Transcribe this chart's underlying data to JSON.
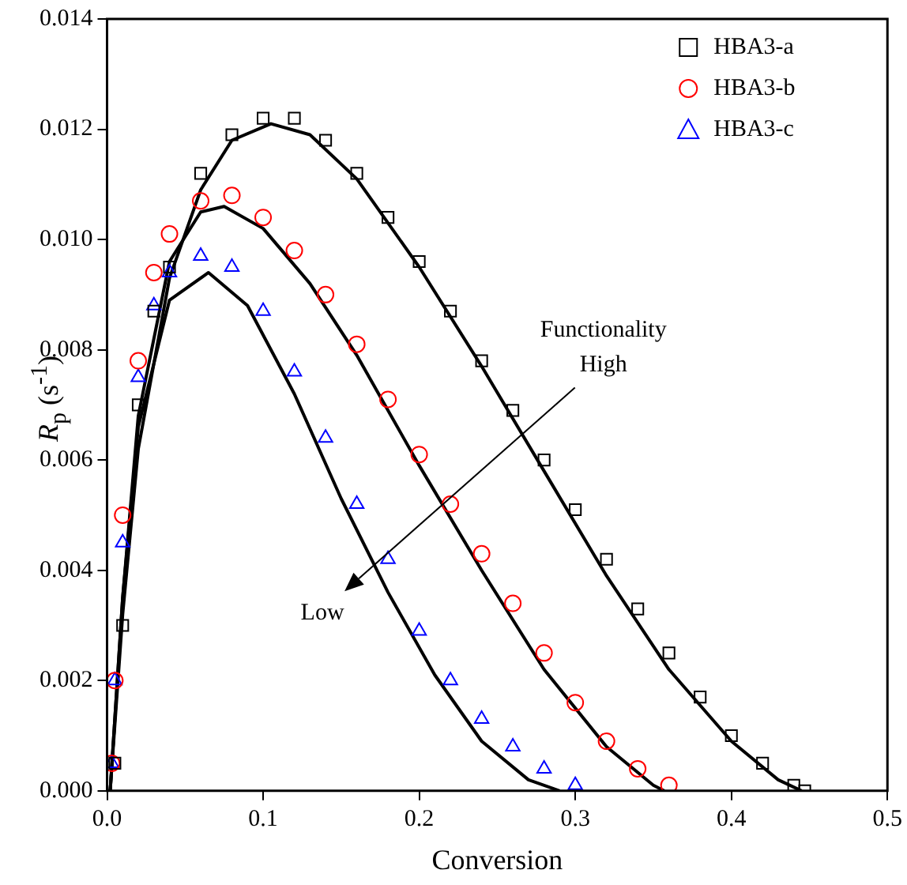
{
  "chart_data": {
    "type": "scatter",
    "xlabel": "Conversion",
    "ylabel": "R$_{p}$ (s$^{-1}$)",
    "xlim": [
      0,
      0.5
    ],
    "xticks": [
      {
        "value": 0,
        "label": "0.0"
      },
      0.1,
      0.2,
      0.3,
      0.4,
      0.5
    ],
    "ylim": [
      0,
      0.014
    ],
    "yticks": [
      {
        "value": 0,
        "label": "0.000"
      },
      {
        "value": 0.002,
        "label": "0.002"
      },
      {
        "value": 0.004,
        "label": "0.004"
      },
      {
        "value": 0.006,
        "label": "0.006"
      },
      {
        "value": 0.008,
        "label": "0.008"
      },
      {
        "value": 0.01,
        "label": "0.010"
      },
      {
        "value": 0.012,
        "label": "0.012"
      },
      {
        "value": 0.014,
        "label": "0.014"
      }
    ],
    "grid": false,
    "legend": "top right",
    "annotations": [
      "Functionality",
      "High",
      "Low"
    ],
    "series": [
      {
        "name": "HBA3-a",
        "color": "#000000",
        "marker": "square",
        "x": [
          0.005,
          0.01,
          0.02,
          0.03,
          0.04,
          0.06,
          0.08,
          0.1,
          0.12,
          0.14,
          0.16,
          0.18,
          0.2,
          0.22,
          0.24,
          0.26,
          0.28,
          0.3,
          0.32,
          0.34,
          0.36,
          0.38,
          0.4,
          0.42,
          0.44,
          0.447
        ],
        "values": [
          0.0005,
          0.003,
          0.007,
          0.0087,
          0.0095,
          0.0112,
          0.0119,
          0.0122,
          0.0122,
          0.0118,
          0.0112,
          0.0104,
          0.0096,
          0.0087,
          0.0078,
          0.0069,
          0.006,
          0.0051,
          0.0042,
          0.0033,
          0.0025,
          0.0017,
          0.001,
          0.0005,
          0.0001,
          0
        ]
      },
      {
        "name": "HBA3-b",
        "color": "#ff0000",
        "marker": "circle",
        "x": [
          0.003,
          0.005,
          0.01,
          0.02,
          0.03,
          0.04,
          0.06,
          0.08,
          0.1,
          0.12,
          0.14,
          0.16,
          0.18,
          0.2,
          0.22,
          0.24,
          0.26,
          0.28,
          0.3,
          0.32,
          0.34,
          0.36
        ],
        "values": [
          0.0005,
          0.002,
          0.005,
          0.0078,
          0.0094,
          0.0101,
          0.0107,
          0.0108,
          0.0104,
          0.0098,
          0.009,
          0.0081,
          0.0071,
          0.0061,
          0.0052,
          0.0043,
          0.0034,
          0.0025,
          0.0016,
          0.0009,
          0.0004,
          0.0001
        ]
      },
      {
        "name": "HBA3-c",
        "color": "#0000ff",
        "marker": "triangle",
        "x": [
          0.003,
          0.005,
          0.01,
          0.02,
          0.03,
          0.04,
          0.06,
          0.08,
          0.1,
          0.12,
          0.14,
          0.16,
          0.18,
          0.2,
          0.22,
          0.24,
          0.26,
          0.28,
          0.3
        ],
        "values": [
          0.0005,
          0.002,
          0.0045,
          0.0075,
          0.0088,
          0.0094,
          0.0097,
          0.0095,
          0.0087,
          0.0076,
          0.0064,
          0.0052,
          0.0042,
          0.0029,
          0.002,
          0.0013,
          0.0008,
          0.0004,
          0.0001
        ]
      },
      {
        "type": "line",
        "color": "#000000",
        "marker": "none",
        "x": [
          0.002,
          0.01,
          0.02,
          0.04,
          0.06,
          0.08,
          0.105,
          0.13,
          0.16,
          0.2,
          0.24,
          0.28,
          0.32,
          0.36,
          0.4,
          0.43,
          0.445
        ],
        "values": [
          0,
          0.0032,
          0.0062,
          0.0093,
          0.0109,
          0.0118,
          0.0121,
          0.0119,
          0.0111,
          0.0095,
          0.0077,
          0.0058,
          0.0039,
          0.0022,
          0.0009,
          0.0002,
          0
        ]
      },
      {
        "type": "line",
        "color": "#000000",
        "marker": "none",
        "x": [
          0.002,
          0.01,
          0.02,
          0.04,
          0.06,
          0.075,
          0.1,
          0.13,
          0.16,
          0.2,
          0.24,
          0.28,
          0.32,
          0.35,
          0.357
        ],
        "values": [
          0,
          0.0035,
          0.0068,
          0.0096,
          0.0105,
          0.0106,
          0.0102,
          0.0092,
          0.0079,
          0.0059,
          0.004,
          0.0022,
          0.0008,
          0.0001,
          0
        ]
      },
      {
        "type": "line",
        "color": "#000000",
        "marker": "none",
        "x": [
          0.002,
          0.01,
          0.02,
          0.04,
          0.065,
          0.09,
          0.12,
          0.15,
          0.18,
          0.21,
          0.24,
          0.27,
          0.29
        ],
        "values": [
          0,
          0.0035,
          0.0066,
          0.0089,
          0.0094,
          0.0088,
          0.0072,
          0.0053,
          0.0036,
          0.0021,
          0.0009,
          0.0002,
          0
        ]
      }
    ]
  }
}
